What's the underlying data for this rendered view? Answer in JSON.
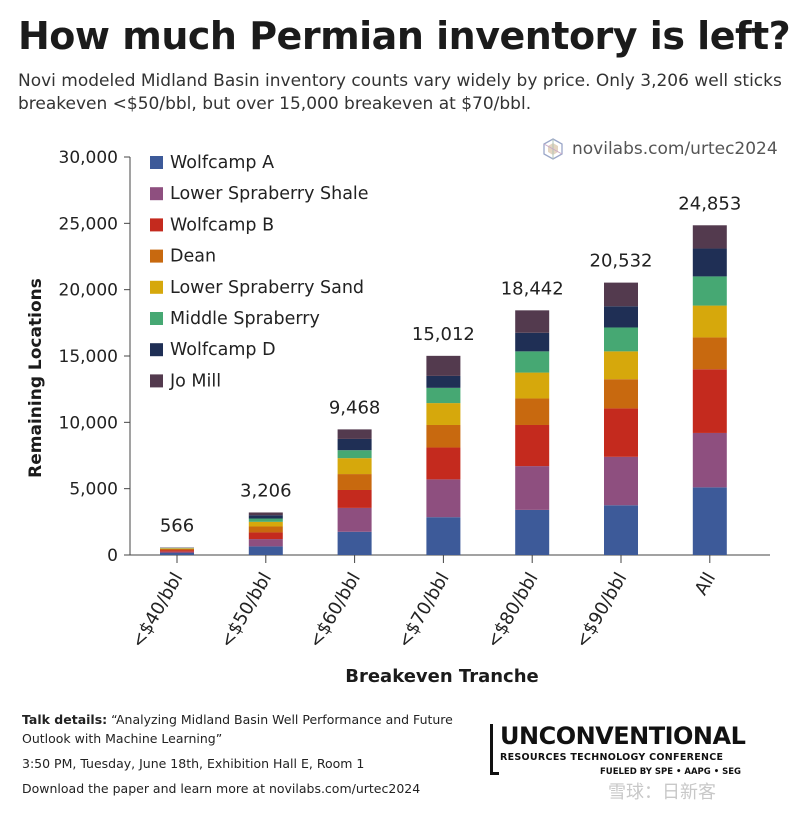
{
  "header": {
    "title": "How much Permian inventory is left?",
    "subtitle": "Novi modeled Midland Basin inventory counts vary widely by price. Only 3,206 well sticks breakeven <$50/bbl, but over 15,000 breakeven at $70/bbl.",
    "source": "novilabs.com/urtec2024"
  },
  "chart_data": {
    "type": "bar",
    "stacked": true,
    "xlabel": "Breakeven Tranche",
    "ylabel": "Remaining Locations",
    "ylim": [
      0,
      30000
    ],
    "yticks": [
      0,
      5000,
      10000,
      15000,
      20000,
      25000,
      30000
    ],
    "ytick_labels": [
      "0",
      "5,000",
      "10,000",
      "15,000",
      "20,000",
      "25,000",
      "30,000"
    ],
    "categories": [
      "<$40/bbl",
      "<$50/bbl",
      "<$60/bbl",
      "<$70/bbl",
      "<$80/bbl",
      "<$90/bbl",
      "All"
    ],
    "totals": [
      566,
      3206,
      9468,
      15012,
      18442,
      20532,
      24853
    ],
    "total_labels": [
      "566",
      "3,206",
      "9,468",
      "15,012",
      "18,442",
      "20,532",
      "24,853"
    ],
    "legend_position": "top-left",
    "series": [
      {
        "name": "Wolfcamp A",
        "color": "#3d5a99",
        "values": [
          150,
          650,
          1750,
          2850,
          3400,
          3750,
          5100
        ]
      },
      {
        "name": "Lower Spraberry Shale",
        "color": "#8e4f7f",
        "values": [
          100,
          550,
          1800,
          2850,
          3300,
          3650,
          4100
        ]
      },
      {
        "name": "Wolfcamp B",
        "color": "#c42a1e",
        "values": [
          120,
          500,
          1350,
          2400,
          3100,
          3650,
          4800
        ]
      },
      {
        "name": "Dean",
        "color": "#c8690f",
        "values": [
          100,
          450,
          1200,
          1700,
          2000,
          2200,
          2400
        ]
      },
      {
        "name": "Lower Spraberry Sand",
        "color": "#d6a80c",
        "values": [
          40,
          350,
          1200,
          1650,
          1950,
          2100,
          2400
        ]
      },
      {
        "name": "Middle Spraberry",
        "color": "#46a873",
        "values": [
          20,
          250,
          600,
          1150,
          1600,
          1800,
          2200
        ]
      },
      {
        "name": "Wolfcamp D",
        "color": "#1f2f55",
        "values": [
          20,
          250,
          850,
          900,
          1400,
          1600,
          2100
        ]
      },
      {
        "name": "Jo Mill",
        "color": "#533a4e",
        "values": [
          16,
          206,
          718,
          1512,
          1692,
          1782,
          1753
        ]
      }
    ]
  },
  "footer": {
    "talk_label": "Talk details:",
    "talk_text": "“Analyzing Midland Basin Well Performance and Future Outlook with Machine Learning”",
    "time_text": "3:50 PM, Tuesday, June 18th, Exhibition Hall E, Room 1",
    "download_text": "Download the paper and learn more at novilabs.com/urtec2024"
  },
  "conference": {
    "name": "UNCONVENTIONAL",
    "subtitle": "RESOURCES TECHNOLOGY CONFERENCE",
    "fueled": "FUELED BY SPE • AAPG • SEG"
  },
  "watermark": "雪球：日新客"
}
